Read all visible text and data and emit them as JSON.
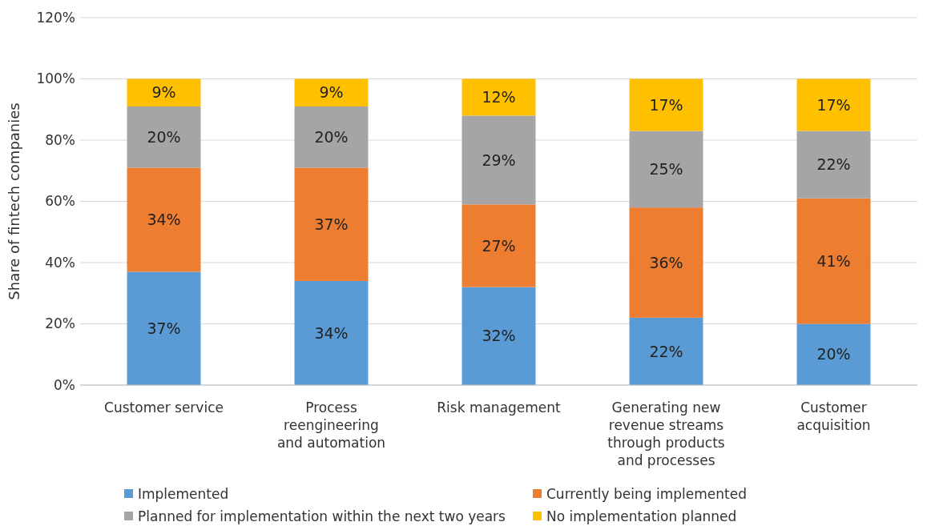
{
  "chart_data": {
    "type": "bar",
    "stacked": true,
    "ylabel": "Share of fintech companies",
    "categories": [
      "Customer service",
      "Process reengineering and automation",
      "Risk management",
      "Generating new revenue streams through products and processes",
      "Customer acquisition"
    ],
    "series": [
      {
        "name": "Implemented",
        "color": "#5b9bd5",
        "values": [
          37,
          34,
          32,
          22,
          20
        ],
        "value_labels": [
          "37%",
          "34%",
          "32%",
          "22%",
          "20%"
        ]
      },
      {
        "name": "Currently being implemented",
        "color": "#ed7d31",
        "values": [
          34,
          37,
          27,
          36,
          41
        ],
        "value_labels": [
          "34%",
          "37%",
          "27%",
          "36%",
          "41%"
        ]
      },
      {
        "name": "Planned for implementation within the next two years",
        "color": "#a5a5a5",
        "values": [
          20,
          20,
          29,
          25,
          22
        ],
        "value_labels": [
          "20%",
          "20%",
          "29%",
          "25%",
          "22%"
        ]
      },
      {
        "name": "No implementation planned",
        "color": "#ffc000",
        "values": [
          9,
          9,
          12,
          17,
          17
        ],
        "value_labels": [
          "9%",
          "9%",
          "12%",
          "17%",
          "17%"
        ]
      }
    ],
    "ylim": [
      0,
      120
    ],
    "yticks": [
      {
        "value": 0,
        "label": "0%"
      },
      {
        "value": 20,
        "label": "20%"
      },
      {
        "value": 40,
        "label": "40%"
      },
      {
        "value": 60,
        "label": "60%"
      },
      {
        "value": 80,
        "label": "80%"
      },
      {
        "value": 100,
        "label": "100%"
      },
      {
        "value": 120,
        "label": "120%"
      }
    ],
    "grid": "y",
    "legend": "bottom"
  }
}
